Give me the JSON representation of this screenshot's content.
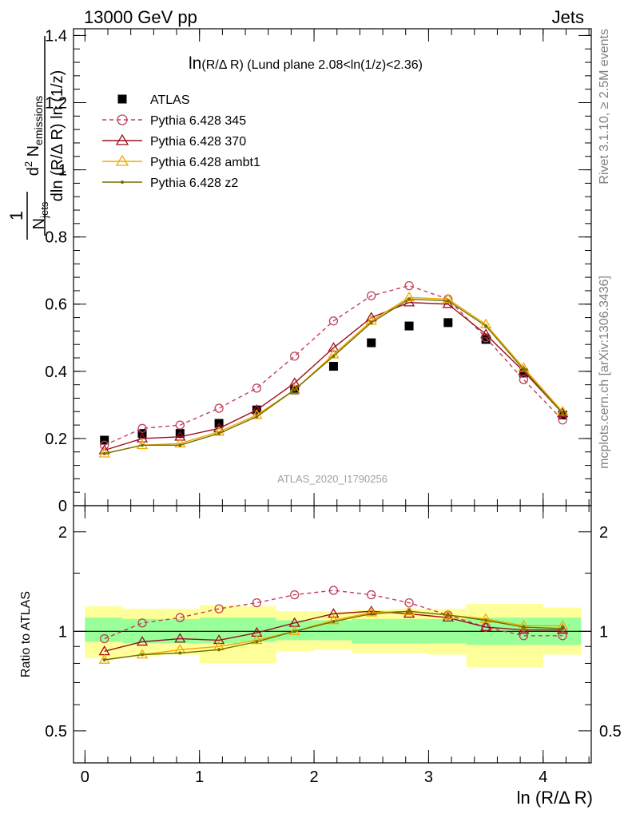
{
  "header": {
    "left": "13000 GeV pp",
    "right": "Jets"
  },
  "side_labels": {
    "rivet": "Rivet 3.1.10, ≥ 2.5M events",
    "mcplots": "mcplots.cern.ch [arXiv:1306.3436]"
  },
  "watermark": "ATLAS_2020_I1790256",
  "chart_data": [
    {
      "type": "line",
      "title": "ln(R/Δ R) (Lund plane 2.08<ln(1/z)<2.36)",
      "ylabel": "1/N_jets d²N_emissions / dln(R/Δ R) ln(1/z)",
      "xlabel": "ln (R/Δ R)",
      "xlim": [
        -0.1,
        4.42
      ],
      "ylim": [
        0,
        1.42
      ],
      "x_ticks": [
        0,
        1,
        2,
        3,
        4
      ],
      "y_ticks": [
        0,
        0.2,
        0.4,
        0.6,
        0.8,
        1,
        1.2,
        1.4
      ],
      "y_tick_labels": [
        "0",
        "0.2",
        "0.4",
        "0.6",
        "0.8",
        "1",
        "1.2",
        "1.4"
      ],
      "x": [
        0.17,
        0.5,
        0.83,
        1.17,
        1.5,
        1.83,
        2.17,
        2.5,
        2.83,
        3.17,
        3.5,
        3.83,
        4.17
      ],
      "legend_position": "top-left",
      "series": [
        {
          "name": "ATLAS",
          "color": "#000000",
          "marker": "square",
          "line": "none",
          "values": [
            0.195,
            0.215,
            0.215,
            0.245,
            0.285,
            0.345,
            0.415,
            0.485,
            0.535,
            0.545,
            0.495,
            0.395,
            0.27
          ]
        },
        {
          "name": "Pythia 6.428 345",
          "color": "#c0405a",
          "marker": "circle",
          "line": "dashed",
          "values": [
            0.18,
            0.23,
            0.24,
            0.29,
            0.35,
            0.445,
            0.55,
            0.625,
            0.655,
            0.615,
            0.5,
            0.375,
            0.255
          ]
        },
        {
          "name": "Pythia 6.428 370",
          "color": "#9b1020",
          "marker": "triangle",
          "line": "solid",
          "values": [
            0.165,
            0.2,
            0.205,
            0.23,
            0.285,
            0.365,
            0.47,
            0.56,
            0.605,
            0.6,
            0.51,
            0.4,
            0.275
          ]
        },
        {
          "name": "Pythia 6.428 ambt1",
          "color": "#f0a800",
          "marker": "triangle",
          "line": "solid",
          "values": [
            0.155,
            0.18,
            0.185,
            0.22,
            0.27,
            0.345,
            0.45,
            0.55,
            0.62,
            0.615,
            0.54,
            0.41,
            0.28
          ]
        },
        {
          "name": "Pythia 6.428 z2",
          "color": "#707000",
          "marker": "dot",
          "line": "solid",
          "values": [
            0.155,
            0.18,
            0.18,
            0.215,
            0.265,
            0.345,
            0.445,
            0.545,
            0.615,
            0.61,
            0.535,
            0.405,
            0.275
          ]
        }
      ]
    },
    {
      "type": "line",
      "ylabel": "Ratio to ATLAS",
      "xlabel": "ln (R/Δ R)",
      "y_scale": "log",
      "xlim": [
        -0.1,
        4.42
      ],
      "ylim": [
        0.4,
        2.4
      ],
      "x_ticks": [
        0,
        1,
        2,
        3,
        4
      ],
      "x_tick_labels": [
        "0",
        "1",
        "2",
        "3",
        "4"
      ],
      "y_ticks": [
        0.5,
        1,
        2
      ],
      "y_tick_labels": [
        "0.5",
        "1",
        "2"
      ],
      "bin_edges": [
        0,
        0.33,
        0.67,
        1.0,
        1.33,
        1.67,
        2.0,
        2.33,
        2.67,
        3.0,
        3.33,
        3.67,
        4.0,
        4.33
      ],
      "band_inner": [
        [
          0.93,
          1.1
        ],
        [
          0.92,
          1.09
        ],
        [
          0.92,
          1.09
        ],
        [
          0.92,
          1.1
        ],
        [
          0.93,
          1.1
        ],
        [
          0.94,
          1.08
        ],
        [
          0.94,
          1.08
        ],
        [
          0.92,
          1.09
        ],
        [
          0.92,
          1.09
        ],
        [
          0.92,
          1.09
        ],
        [
          0.91,
          1.1
        ],
        [
          0.91,
          1.1
        ],
        [
          0.91,
          1.1
        ]
      ],
      "band_outer": [
        [
          0.83,
          1.19
        ],
        [
          0.84,
          1.17
        ],
        [
          0.85,
          1.17
        ],
        [
          0.8,
          1.2
        ],
        [
          0.8,
          1.19
        ],
        [
          0.87,
          1.15
        ],
        [
          0.88,
          1.15
        ],
        [
          0.86,
          1.16
        ],
        [
          0.86,
          1.17
        ],
        [
          0.85,
          1.17
        ],
        [
          0.78,
          1.21
        ],
        [
          0.78,
          1.21
        ],
        [
          0.85,
          1.18
        ]
      ],
      "x": [
        0.17,
        0.5,
        0.83,
        1.17,
        1.5,
        1.83,
        2.17,
        2.5,
        2.83,
        3.17,
        3.5,
        3.83,
        4.17
      ],
      "series": [
        {
          "name": "Pythia 6.428 345",
          "color": "#c0405a",
          "marker": "circle",
          "line": "dashed",
          "values": [
            0.95,
            1.06,
            1.1,
            1.17,
            1.22,
            1.29,
            1.33,
            1.29,
            1.22,
            1.12,
            1.03,
            0.97,
            0.97
          ]
        },
        {
          "name": "Pythia 6.428 370",
          "color": "#9b1020",
          "marker": "triangle",
          "line": "solid",
          "values": [
            0.87,
            0.93,
            0.95,
            0.94,
            0.99,
            1.06,
            1.13,
            1.15,
            1.13,
            1.1,
            1.03,
            1.01,
            1.01
          ]
        },
        {
          "name": "Pythia 6.428 ambt1",
          "color": "#f0a800",
          "marker": "triangle",
          "line": "solid",
          "values": [
            0.82,
            0.85,
            0.88,
            0.9,
            0.94,
            1.0,
            1.08,
            1.14,
            1.15,
            1.12,
            1.09,
            1.04,
            1.04
          ]
        },
        {
          "name": "Pythia 6.428 z2",
          "color": "#707000",
          "marker": "dot",
          "line": "solid",
          "values": [
            0.82,
            0.85,
            0.86,
            0.88,
            0.93,
            1.0,
            1.07,
            1.13,
            1.15,
            1.12,
            1.08,
            1.03,
            1.02
          ]
        }
      ]
    }
  ]
}
